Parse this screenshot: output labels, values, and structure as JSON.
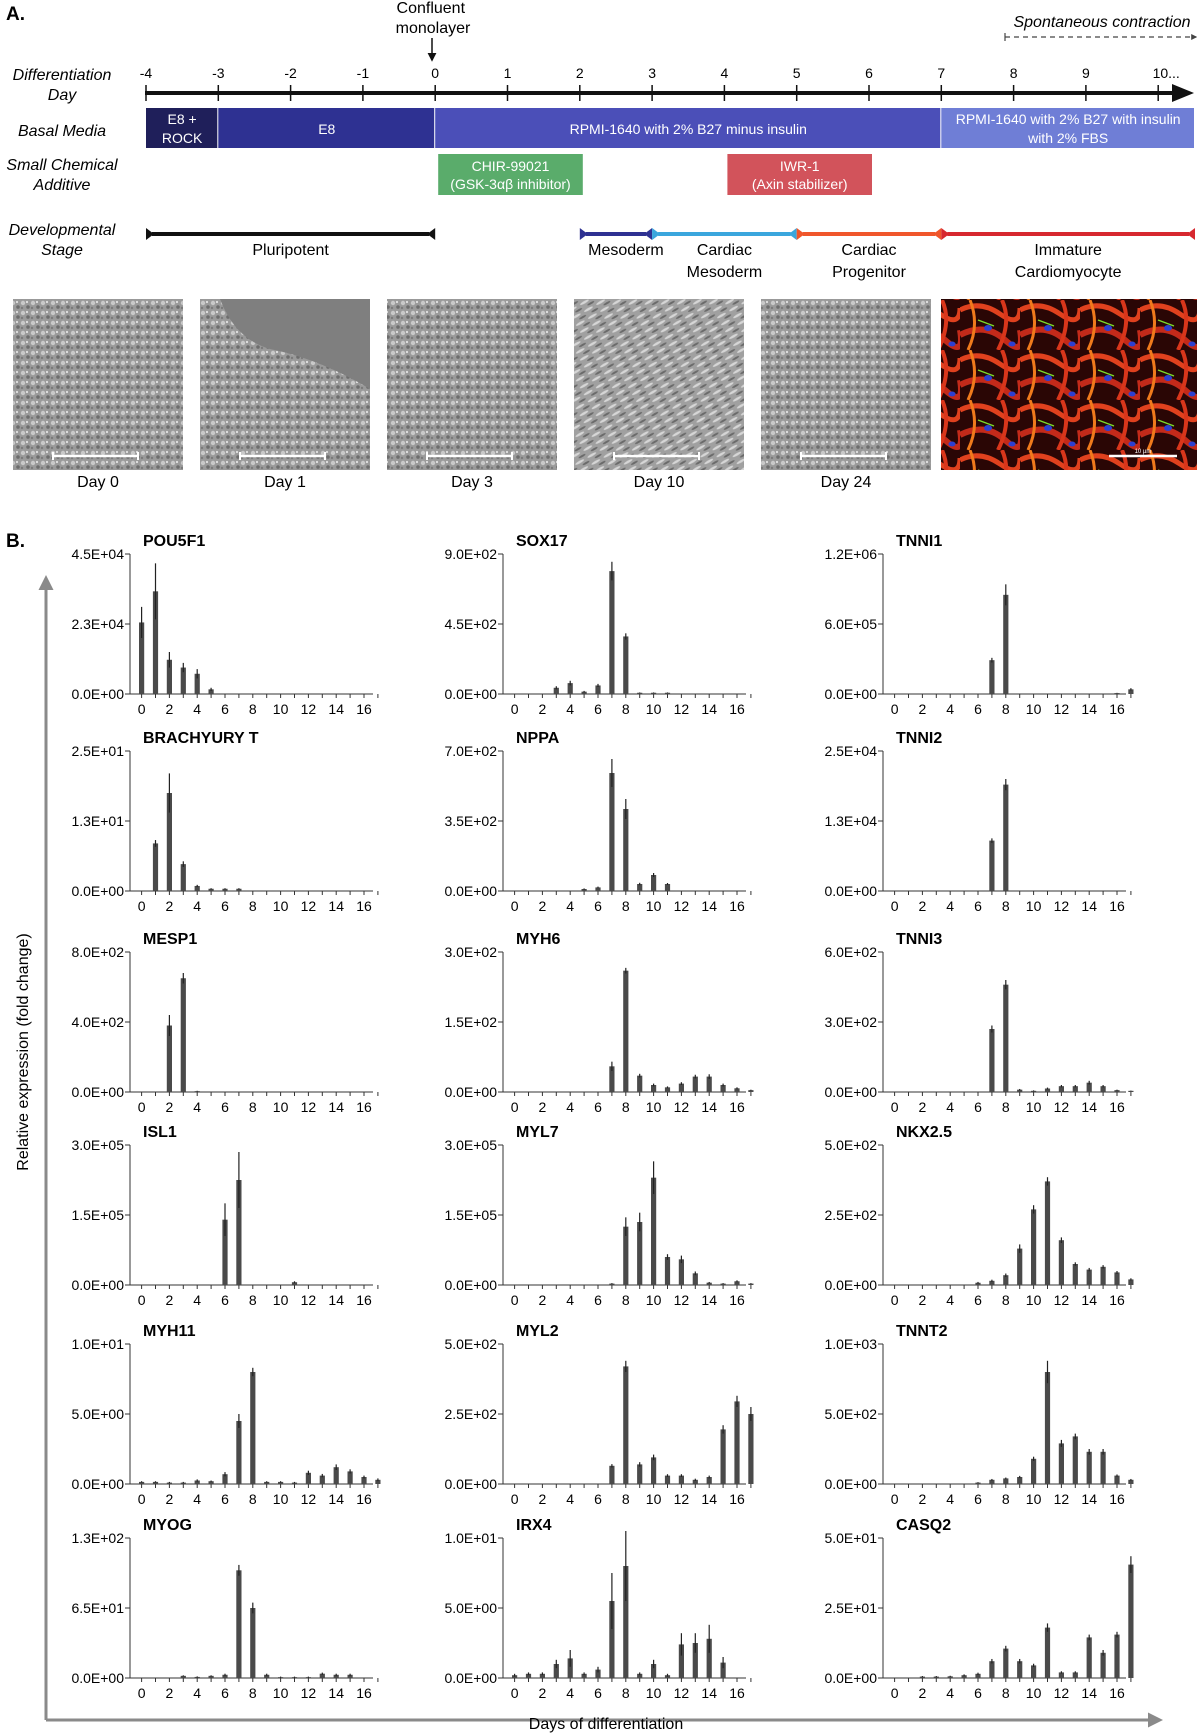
{
  "panel_a": {
    "label": "A.",
    "confluent_label": "Confluent monolayer",
    "contraction_label": "Spontaneous contraction",
    "rows": {
      "diff_day": "Differentiation Day",
      "basal_media": "Basal Media",
      "small_chem": "Small Chemical Additive",
      "dev_stage": "Developmental Stage"
    },
    "days": [
      "-4",
      "-3",
      "-2",
      "-1",
      "0",
      "1",
      "2",
      "3",
      "4",
      "5",
      "6",
      "7",
      "8",
      "9",
      "10..."
    ],
    "media": [
      {
        "text": "E8 + ROCK",
        "from": -4,
        "to": -3,
        "color": "#1f1f5a"
      },
      {
        "text": "E8",
        "from": -3,
        "to": 0,
        "color": "#2e3192"
      },
      {
        "text": "RPMI-1640 with 2% B27 minus insulin",
        "from": 0,
        "to": 7,
        "color": "#4b4fb8"
      },
      {
        "text": "RPMI-1640 with 2% B27 with insulin with 2% FBS",
        "from": 7,
        "to": 11,
        "color": "#6f7ed6"
      }
    ],
    "additives": [
      {
        "text": "CHIR-99021 (GSK-3αβ inhibitor)",
        "from": 0,
        "to": 2,
        "color": "#5aac6b"
      },
      {
        "text": "IWR-1 (Axin stabilizer)",
        "from": 4,
        "to": 6,
        "color": "#d2535b"
      }
    ],
    "stages": [
      {
        "text": "Pluripotent",
        "from": -4,
        "to": 0,
        "color": "#111111"
      },
      {
        "text": "Mesoderm",
        "from": 2,
        "to": 3,
        "color": "#2e3192"
      },
      {
        "text": "Cardiac Mesoderm",
        "from": 3,
        "to": 5,
        "color": "#3aa6dd"
      },
      {
        "text": "Cardiac Progenitor",
        "from": 5,
        "to": 7,
        "color": "#f0562b"
      },
      {
        "text": "Immature Cardiomyocyte",
        "from": 7,
        "to": 11,
        "color": "#d7282f"
      }
    ],
    "images": [
      {
        "caption": "Day 0"
      },
      {
        "caption": "Day 1"
      },
      {
        "caption": "Day 3"
      },
      {
        "caption": "Day 10"
      },
      {
        "caption": "Day 24"
      },
      {
        "caption": "",
        "scale_label": "10 µm"
      }
    ]
  },
  "panel_b": {
    "label": "B.",
    "ylabel": "Relative expression (fold change)",
    "xlabel": "Days of differentiation",
    "bar_color": "#4a4a4a"
  },
  "chart_data": [
    {
      "type": "bar",
      "title": "POU5F1",
      "ytick_labels": [
        "0.0E+00",
        "2.3E+04",
        "4.5E+04"
      ],
      "ylim": [
        0,
        45000
      ],
      "x": [
        0,
        1,
        2,
        3,
        4,
        5,
        6,
        7,
        8,
        9,
        10,
        11,
        12,
        13,
        14,
        15,
        16,
        17
      ],
      "values": [
        23000,
        33000,
        11000,
        8500,
        6500,
        1500,
        0,
        0,
        0,
        0,
        0,
        0,
        0,
        0,
        0,
        0,
        0,
        0
      ],
      "errors": [
        5000,
        9000,
        2500,
        1500,
        1500,
        500,
        0,
        0,
        0,
        0,
        0,
        0,
        0,
        0,
        0,
        0,
        0,
        0
      ]
    },
    {
      "type": "bar",
      "title": "SOX17",
      "ytick_labels": [
        "0.0E+00",
        "4.5E+02",
        "9.0E+02"
      ],
      "ylim": [
        0,
        900
      ],
      "x": [
        0,
        1,
        2,
        3,
        4,
        5,
        6,
        7,
        8,
        9,
        10,
        11,
        12,
        13,
        14,
        15,
        16,
        17
      ],
      "values": [
        0,
        0,
        0,
        40,
        70,
        15,
        55,
        790,
        370,
        8,
        8,
        8,
        0,
        0,
        0,
        0,
        0,
        0
      ],
      "errors": [
        0,
        0,
        0,
        10,
        15,
        5,
        10,
        60,
        20,
        2,
        2,
        2,
        0,
        0,
        0,
        0,
        0,
        0
      ]
    },
    {
      "type": "bar",
      "title": "TNNI1",
      "ytick_labels": [
        "0.0E+00",
        "6.0E+05",
        "1.2E+06"
      ],
      "ylim": [
        0,
        1200000
      ],
      "x": [
        0,
        1,
        2,
        3,
        4,
        5,
        6,
        7,
        8,
        9,
        10,
        11,
        12,
        13,
        14,
        15,
        16,
        17
      ],
      "values": [
        0,
        0,
        0,
        0,
        0,
        0,
        0,
        290000,
        850000,
        0,
        0,
        0,
        0,
        0,
        0,
        0,
        8000,
        40000
      ],
      "errors": [
        0,
        0,
        0,
        0,
        0,
        0,
        0,
        20000,
        90000,
        0,
        0,
        0,
        0,
        0,
        0,
        0,
        2000,
        10000
      ]
    },
    {
      "type": "bar",
      "title": "BRACHYURY T",
      "ytick_labels": [
        "0.0E+00",
        "1.3E+01",
        "2.5E+01"
      ],
      "ylim": [
        0,
        25
      ],
      "x": [
        0,
        1,
        2,
        3,
        4,
        5,
        6,
        7,
        8,
        9,
        10,
        11,
        12,
        13,
        14,
        15,
        16,
        17
      ],
      "values": [
        0,
        8.5,
        17.5,
        4.8,
        0.9,
        0.4,
        0.4,
        0.4,
        0,
        0,
        0,
        0,
        0,
        0,
        0,
        0,
        0,
        0
      ],
      "errors": [
        0,
        0.6,
        3.5,
        0.5,
        0.2,
        0.1,
        0.1,
        0.1,
        0,
        0,
        0,
        0,
        0,
        0,
        0,
        0,
        0,
        0
      ]
    },
    {
      "type": "bar",
      "title": "NPPA",
      "ytick_labels": [
        "0.0E+00",
        "3.5E+02",
        "7.0E+02"
      ],
      "ylim": [
        0,
        700
      ],
      "x": [
        0,
        1,
        2,
        3,
        4,
        5,
        6,
        7,
        8,
        9,
        10,
        11,
        12,
        13,
        14,
        15,
        16,
        17
      ],
      "values": [
        0,
        0,
        0,
        0,
        0,
        10,
        18,
        590,
        410,
        35,
        80,
        35,
        0,
        0,
        0,
        0,
        0,
        0
      ],
      "errors": [
        0,
        0,
        0,
        0,
        0,
        3,
        4,
        70,
        50,
        6,
        10,
        5,
        0,
        0,
        0,
        0,
        0,
        0
      ]
    },
    {
      "type": "bar",
      "title": "TNNI2",
      "ytick_labels": [
        "0.0E+00",
        "1.3E+04",
        "2.5E+04"
      ],
      "ylim": [
        0,
        25000
      ],
      "x": [
        0,
        1,
        2,
        3,
        4,
        5,
        6,
        7,
        8,
        9,
        10,
        11,
        12,
        13,
        14,
        15,
        16,
        17
      ],
      "values": [
        0,
        0,
        0,
        0,
        0,
        0,
        0,
        9000,
        19000,
        0,
        0,
        0,
        0,
        0,
        0,
        0,
        0,
        0
      ],
      "errors": [
        0,
        0,
        0,
        0,
        0,
        0,
        0,
        400,
        1000,
        0,
        0,
        0,
        0,
        0,
        0,
        0,
        0,
        0
      ]
    },
    {
      "type": "bar",
      "title": "MESP1",
      "ytick_labels": [
        "0.0E+00",
        "4.0E+02",
        "8.0E+02"
      ],
      "ylim": [
        0,
        800
      ],
      "x": [
        0,
        1,
        2,
        3,
        4,
        5,
        6,
        7,
        8,
        9,
        10,
        11,
        12,
        13,
        14,
        15,
        16,
        17
      ],
      "values": [
        0,
        0,
        380,
        650,
        5,
        0,
        0,
        0,
        0,
        0,
        0,
        0,
        0,
        0,
        0,
        0,
        0,
        0
      ],
      "errors": [
        0,
        0,
        60,
        30,
        2,
        0,
        0,
        0,
        0,
        0,
        0,
        0,
        0,
        0,
        0,
        0,
        0,
        0
      ]
    },
    {
      "type": "bar",
      "title": "MYH6",
      "ytick_labels": [
        "0.0E+00",
        "1.5E+02",
        "3.0E+02"
      ],
      "ylim": [
        0,
        300
      ],
      "x": [
        0,
        1,
        2,
        3,
        4,
        5,
        6,
        7,
        8,
        9,
        10,
        11,
        12,
        13,
        14,
        15,
        16,
        17
      ],
      "values": [
        0,
        0,
        0,
        0,
        0,
        0,
        0,
        55,
        260,
        35,
        15,
        10,
        18,
        33,
        33,
        15,
        8,
        4
      ],
      "errors": [
        0,
        0,
        0,
        0,
        0,
        0,
        0,
        10,
        6,
        4,
        3,
        2,
        3,
        4,
        5,
        3,
        2,
        1
      ]
    },
    {
      "type": "bar",
      "title": "TNNI3",
      "ytick_labels": [
        "0.0E+00",
        "3.0E+02",
        "6.0E+02"
      ],
      "ylim": [
        0,
        600
      ],
      "x": [
        0,
        1,
        2,
        3,
        4,
        5,
        6,
        7,
        8,
        9,
        10,
        11,
        12,
        13,
        14,
        15,
        16,
        17
      ],
      "values": [
        0,
        0,
        0,
        0,
        0,
        0,
        0,
        270,
        460,
        10,
        5,
        15,
        25,
        25,
        40,
        25,
        8,
        5
      ],
      "errors": [
        0,
        0,
        0,
        0,
        0,
        0,
        0,
        15,
        20,
        3,
        2,
        4,
        5,
        5,
        8,
        5,
        2,
        1
      ]
    },
    {
      "type": "bar",
      "title": "ISL1",
      "ytick_labels": [
        "0.0E+00",
        "1.5E+05",
        "3.0E+05"
      ],
      "ylim": [
        0,
        300000
      ],
      "x": [
        0,
        1,
        2,
        3,
        4,
        5,
        6,
        7,
        8,
        9,
        10,
        11,
        12,
        13,
        14,
        15,
        16,
        17
      ],
      "values": [
        0,
        0,
        0,
        0,
        0,
        0,
        140000,
        225000,
        0,
        0,
        0,
        6000,
        0,
        0,
        0,
        0,
        0,
        0
      ],
      "errors": [
        0,
        0,
        0,
        0,
        0,
        0,
        35000,
        60000,
        0,
        0,
        0,
        2000,
        0,
        0,
        0,
        0,
        0,
        0
      ]
    },
    {
      "type": "bar",
      "title": "MYL7",
      "ytick_labels": [
        "0.0E+00",
        "1.5E+05",
        "3.0E+05"
      ],
      "ylim": [
        0,
        300000
      ],
      "x": [
        0,
        1,
        2,
        3,
        4,
        5,
        6,
        7,
        8,
        9,
        10,
        11,
        12,
        13,
        14,
        15,
        16,
        17
      ],
      "values": [
        0,
        0,
        0,
        0,
        0,
        0,
        0,
        3000,
        125000,
        135000,
        230000,
        60000,
        55000,
        25000,
        5000,
        3000,
        8000,
        3000
      ],
      "errors": [
        0,
        0,
        0,
        0,
        0,
        0,
        0,
        1000,
        20000,
        20000,
        35000,
        6000,
        8000,
        4000,
        1500,
        1000,
        2000,
        1000
      ]
    },
    {
      "type": "bar",
      "title": "NKX2.5",
      "ytick_labels": [
        "0.0E+00",
        "2.5E+02",
        "5.0E+02"
      ],
      "ylim": [
        0,
        500
      ],
      "x": [
        0,
        1,
        2,
        3,
        4,
        5,
        6,
        7,
        8,
        9,
        10,
        11,
        12,
        13,
        14,
        15,
        16,
        17
      ],
      "values": [
        0,
        0,
        0,
        0,
        0,
        0,
        8,
        15,
        35,
        130,
        270,
        370,
        160,
        75,
        55,
        65,
        45,
        20
      ],
      "errors": [
        0,
        0,
        0,
        0,
        0,
        0,
        3,
        4,
        6,
        15,
        15,
        15,
        10,
        6,
        6,
        6,
        5,
        4
      ]
    },
    {
      "type": "bar",
      "title": "MYH11",
      "ytick_labels": [
        "0.0E+00",
        "5.0E+00",
        "1.0E+01"
      ],
      "ylim": [
        0,
        10
      ],
      "x": [
        0,
        1,
        2,
        3,
        4,
        5,
        6,
        7,
        8,
        9,
        10,
        11,
        12,
        13,
        14,
        15,
        16,
        17
      ],
      "values": [
        0.15,
        0.15,
        0.1,
        0.1,
        0.25,
        0.2,
        0.7,
        4.5,
        8,
        0.15,
        0.15,
        0.1,
        0.8,
        0.6,
        1.2,
        0.9,
        0.5,
        0.3
      ],
      "errors": [
        0.05,
        0.05,
        0.05,
        0.05,
        0.08,
        0.05,
        0.15,
        0.5,
        0.3,
        0.05,
        0.05,
        0.05,
        0.15,
        0.12,
        0.2,
        0.15,
        0.1,
        0.1
      ]
    },
    {
      "type": "bar",
      "title": "MYL2",
      "ytick_labels": [
        "0.0E+00",
        "2.5E+02",
        "5.0E+02"
      ],
      "ylim": [
        0,
        500
      ],
      "x": [
        0,
        1,
        2,
        3,
        4,
        5,
        6,
        7,
        8,
        9,
        10,
        11,
        12,
        13,
        14,
        15,
        16,
        17
      ],
      "values": [
        0,
        0,
        0,
        0,
        0,
        0,
        0,
        65,
        420,
        70,
        95,
        30,
        30,
        15,
        25,
        195,
        295,
        250
      ],
      "errors": [
        0,
        0,
        0,
        0,
        0,
        0,
        0,
        6,
        20,
        8,
        10,
        5,
        5,
        4,
        5,
        15,
        20,
        25
      ]
    },
    {
      "type": "bar",
      "title": "TNNT2",
      "ytick_labels": [
        "0.0E+00",
        "5.0E+02",
        "1.0E+03"
      ],
      "ylim": [
        0,
        1000
      ],
      "x": [
        0,
        1,
        2,
        3,
        4,
        5,
        6,
        7,
        8,
        9,
        10,
        11,
        12,
        13,
        14,
        15,
        16,
        17
      ],
      "values": [
        0,
        0,
        0,
        0,
        0,
        0,
        10,
        30,
        40,
        50,
        180,
        800,
        290,
        340,
        230,
        230,
        60,
        30
      ],
      "errors": [
        0,
        0,
        0,
        0,
        0,
        0,
        3,
        6,
        6,
        8,
        15,
        80,
        25,
        20,
        20,
        20,
        8,
        6
      ]
    },
    {
      "type": "bar",
      "title": "MYOG",
      "ytick_labels": [
        "0.0E+00",
        "6.5E+01",
        "1.3E+02"
      ],
      "ylim": [
        0,
        130
      ],
      "x": [
        0,
        1,
        2,
        3,
        4,
        5,
        6,
        7,
        8,
        9,
        10,
        11,
        12,
        13,
        14,
        15,
        16,
        17
      ],
      "values": [
        0,
        0,
        0,
        2,
        1,
        2,
        3,
        100,
        65,
        3,
        0.8,
        0.8,
        0.8,
        4,
        3,
        3,
        0,
        0
      ],
      "errors": [
        0,
        0,
        0,
        0.5,
        0.5,
        0.5,
        1,
        5,
        5,
        1,
        0.5,
        0.5,
        0.5,
        1,
        1,
        1,
        0,
        0
      ]
    },
    {
      "type": "bar",
      "title": "IRX4",
      "ytick_labels": [
        "0.0E+00",
        "5.0E+00",
        "1.0E+01"
      ],
      "ylim": [
        0,
        10
      ],
      "x": [
        0,
        1,
        2,
        3,
        4,
        5,
        6,
        7,
        8,
        9,
        10,
        11,
        12,
        13,
        14,
        15,
        16,
        17
      ],
      "values": [
        0.2,
        0.3,
        0.3,
        1,
        1.4,
        0.3,
        0.6,
        5.5,
        8,
        0.3,
        1,
        0.2,
        2.4,
        2.5,
        2.8,
        1.1,
        0,
        0
      ],
      "errors": [
        0.1,
        0.1,
        0.1,
        0.3,
        0.6,
        0.1,
        0.2,
        2,
        2.5,
        0.1,
        0.3,
        0.1,
        0.8,
        0.7,
        1,
        0.4,
        0,
        0
      ]
    },
    {
      "type": "bar",
      "title": "CASQ2",
      "ytick_labels": [
        "0.0E+00",
        "2.5E+01",
        "5.0E+01"
      ],
      "ylim": [
        0,
        50
      ],
      "x": [
        0,
        1,
        2,
        3,
        4,
        5,
        6,
        7,
        8,
        9,
        10,
        11,
        12,
        13,
        14,
        15,
        16,
        17
      ],
      "values": [
        0,
        0,
        0.5,
        0.5,
        0.6,
        1,
        1.5,
        6,
        10.5,
        6,
        4.5,
        18,
        2,
        2,
        14.5,
        9,
        15.5,
        40.5
      ],
      "errors": [
        0,
        0,
        0.2,
        0.2,
        0.2,
        0.3,
        0.4,
        0.8,
        1,
        0.8,
        0.6,
        1.5,
        0.4,
        0.4,
        1,
        1,
        1,
        3
      ]
    }
  ]
}
